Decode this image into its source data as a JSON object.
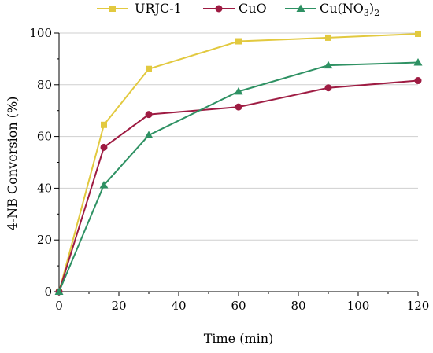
{
  "chart_data": {
    "type": "line",
    "title": "",
    "xlabel": "Time (min)",
    "ylabel": "4-NB Conversion (%)",
    "xlim": [
      0,
      120
    ],
    "ylim": [
      0,
      100
    ],
    "xticks": [
      0,
      20,
      40,
      60,
      80,
      100,
      120
    ],
    "yticks": [
      0,
      20,
      40,
      60,
      80,
      100
    ],
    "grid": "horizontal",
    "legend_position": "top",
    "x": [
      0,
      15,
      30,
      60,
      90,
      120
    ],
    "series": [
      {
        "name": "URJC-1",
        "color": "#e2c93f",
        "marker": "square",
        "values": [
          0,
          64.5,
          86.1,
          96.8,
          98.2,
          99.7
        ]
      },
      {
        "name": "CuO",
        "color": "#9e1b42",
        "marker": "circle",
        "values": [
          0,
          55.8,
          68.5,
          71.4,
          78.8,
          81.6
        ]
      },
      {
        "name": "Cu(NO3)2",
        "color": "#2e9163",
        "marker": "triangle",
        "values": [
          0,
          41.2,
          60.5,
          77.4,
          87.5,
          88.6
        ]
      }
    ]
  },
  "legend": {
    "items": [
      {
        "label": "URJC-1"
      },
      {
        "label": "CuO"
      },
      {
        "label_main": "Cu(NO",
        "label_sub1": "3",
        "label_mid": ")",
        "label_sub2": "2"
      }
    ]
  }
}
